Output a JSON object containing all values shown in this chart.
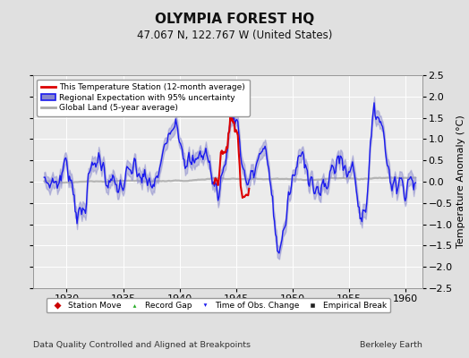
{
  "title": "OLYMPIA FOREST HQ",
  "subtitle": "47.067 N, 122.767 W (United States)",
  "xlabel_note": "Data Quality Controlled and Aligned at Breakpoints",
  "xlabel_right": "Berkeley Earth",
  "ylabel_right": "Temperature Anomaly (°C)",
  "xlim": [
    1927.0,
    1961.5
  ],
  "ylim": [
    -2.5,
    2.5
  ],
  "yticks": [
    -2.5,
    -2,
    -1.5,
    -1,
    -0.5,
    0,
    0.5,
    1,
    1.5,
    2,
    2.5
  ],
  "xticks": [
    1930,
    1935,
    1940,
    1945,
    1950,
    1955,
    1960
  ],
  "bg_color": "#e0e0e0",
  "plot_bg_color": "#ebebeb",
  "grid_color": "#ffffff",
  "blue_line_color": "#1a1aee",
  "blue_fill_color": "#8888cc",
  "red_line_color": "#dd0000",
  "gray_line_color": "#aaaaaa",
  "legend_items": [
    {
      "label": "This Temperature Station (12-month average)"
    },
    {
      "label": "Regional Expectation with 95% uncertainty"
    },
    {
      "label": "Global Land (5-year average)"
    }
  ],
  "marker_items": [
    {
      "label": "Station Move",
      "marker": "D",
      "color": "#cc0000"
    },
    {
      "label": "Record Gap",
      "marker": "^",
      "color": "#22aa22"
    },
    {
      "label": "Time of Obs. Change",
      "marker": "v",
      "color": "#1a1aee"
    },
    {
      "label": "Empirical Break",
      "marker": "s",
      "color": "#222222"
    }
  ]
}
